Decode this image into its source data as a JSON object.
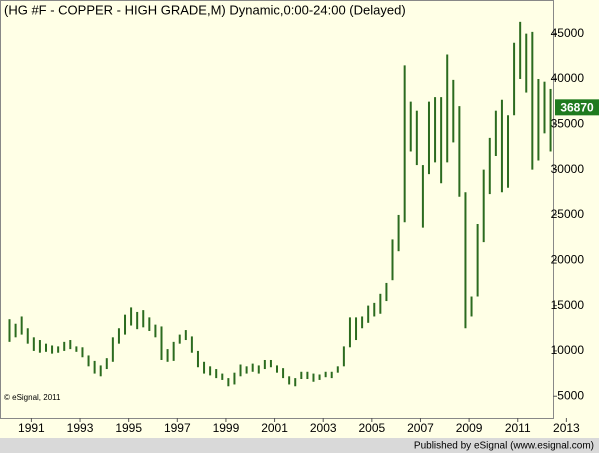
{
  "chart_data": {
    "type": "range-bar",
    "title": "(HG #F - COPPER - HIGH GRADE,M) Dynamic,0:00-24:00 (Delayed)",
    "annotation": "© eSignal, 2011",
    "footer": "Published by eSignal (www.esignal.com)",
    "last_price": 36870,
    "last_price_color": "#1e7a1e",
    "color": "#2b6b1f",
    "xlim": [
      1989.75,
      2012.45
    ],
    "xticks": [
      1991,
      1993,
      1995,
      1997,
      1999,
      2001,
      2003,
      2005,
      2007,
      2009,
      2011,
      2013
    ],
    "ylim": [
      2600,
      48600
    ],
    "yticks": [
      5000,
      10000,
      15000,
      20000,
      25000,
      30000,
      35000,
      40000,
      45000
    ],
    "x": [
      1990.1,
      1990.35,
      1990.6,
      1990.85,
      1991.1,
      1991.35,
      1991.6,
      1991.85,
      1992.1,
      1992.35,
      1992.6,
      1992.85,
      1993.1,
      1993.35,
      1993.6,
      1993.85,
      1994.1,
      1994.35,
      1994.6,
      1994.85,
      1995.1,
      1995.35,
      1995.6,
      1995.85,
      1996.1,
      1996.35,
      1996.6,
      1996.85,
      1997.1,
      1997.35,
      1997.6,
      1997.85,
      1998.1,
      1998.35,
      1998.6,
      1998.85,
      1999.1,
      1999.35,
      1999.6,
      1999.85,
      2000.1,
      2000.35,
      2000.6,
      2000.85,
      2001.1,
      2001.35,
      2001.6,
      2001.85,
      2002.1,
      2002.35,
      2002.6,
      2002.85,
      2003.1,
      2003.35,
      2003.6,
      2003.85,
      2004.1,
      2004.35,
      2004.6,
      2004.85,
      2005.1,
      2005.35,
      2005.6,
      2005.85,
      2006.1,
      2006.35,
      2006.6,
      2006.85,
      2007.1,
      2007.35,
      2007.6,
      2007.85,
      2008.1,
      2008.35,
      2008.6,
      2008.85,
      2009.1,
      2009.35,
      2009.6,
      2009.85,
      2010.1,
      2010.35,
      2010.6,
      2010.85,
      2011.1,
      2011.35,
      2011.6,
      2011.85,
      2012.1,
      2012.35
    ],
    "high": [
      13500,
      13000,
      13800,
      12500,
      11500,
      11200,
      10800,
      10600,
      10500,
      11000,
      11200,
      10500,
      10400,
      9500,
      8900,
      8400,
      9200,
      11500,
      12500,
      14000,
      14800,
      14300,
      14500,
      13700,
      12900,
      12700,
      10200,
      11000,
      11800,
      12300,
      11600,
      10000,
      8800,
      8300,
      8000,
      7500,
      7000,
      7600,
      8500,
      8300,
      8600,
      8400,
      9000,
      9000,
      8400,
      8100,
      7200,
      7000,
      7700,
      7700,
      7500,
      7400,
      7700,
      7700,
      8300,
      10500,
      13700,
      13700,
      13800,
      15000,
      15300,
      16300,
      17500,
      22300,
      25000,
      41500,
      37500,
      36500,
      30500,
      37500,
      38000,
      38000,
      42700,
      39900,
      37000,
      27500,
      16000,
      24000,
      30000,
      33500,
      36500,
      37700,
      36000,
      44000,
      46300,
      45000,
      45200,
      40000,
      39700,
      38900
    ],
    "low": [
      11000,
      11500,
      11800,
      10800,
      10000,
      9800,
      9900,
      9700,
      9800,
      10000,
      10200,
      9900,
      9300,
      8300,
      7500,
      7200,
      8000,
      8800,
      10800,
      11800,
      12800,
      12400,
      12600,
      12200,
      11500,
      9000,
      8800,
      8900,
      10800,
      11200,
      9800,
      8200,
      7500,
      7300,
      7000,
      6800,
      6100,
      6300,
      7200,
      7500,
      7700,
      7500,
      8000,
      8200,
      7600,
      7000,
      6300,
      6100,
      6900,
      6900,
      6600,
      6800,
      7100,
      7000,
      7600,
      8300,
      10400,
      11200,
      12500,
      13100,
      13800,
      14100,
      15500,
      17800,
      21000,
      24200,
      32000,
      30500,
      23600,
      29500,
      30800,
      28500,
      30800,
      33000,
      27000,
      12500,
      13800,
      16000,
      22000,
      27300,
      31500,
      27500,
      28000,
      36000,
      40000,
      38500,
      30000,
      31000,
      34000,
      32000
    ]
  }
}
